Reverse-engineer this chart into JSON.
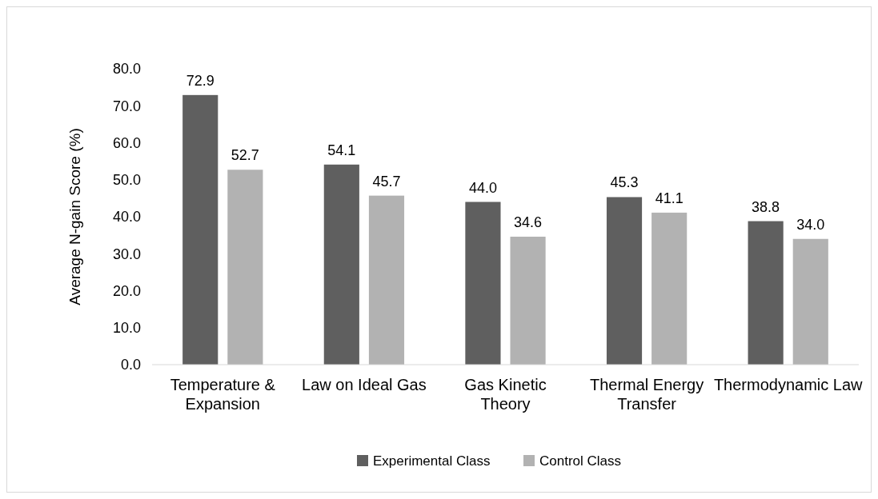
{
  "chart_data": {
    "type": "bar",
    "ylabel": "Average N-gain Score (%)",
    "categories": [
      "Temperature & Expansion",
      "Law on Ideal Gas",
      "Gas Kinetic Theory",
      "Thermal Energy Transfer",
      "Thermodynamic Law"
    ],
    "series": [
      {
        "name": "Experimental Class",
        "color": "#5f5f5f",
        "values": [
          72.9,
          54.1,
          44.0,
          45.3,
          38.8
        ]
      },
      {
        "name": "Control Class",
        "color": "#b2b2b2",
        "values": [
          52.7,
          45.7,
          34.6,
          41.1,
          34.0
        ]
      }
    ],
    "ylim": [
      0,
      80
    ],
    "yticks": [
      {
        "value": 0,
        "label": "0.0"
      },
      {
        "value": 10,
        "label": "10.0"
      },
      {
        "value": 20,
        "label": "20.0"
      },
      {
        "value": 30,
        "label": "30.0"
      },
      {
        "value": 40,
        "label": "40.0"
      },
      {
        "value": 50,
        "label": "50.0"
      },
      {
        "value": 60,
        "label": "60.0"
      },
      {
        "value": 70,
        "label": "70.0"
      },
      {
        "value": 80,
        "label": "80.0"
      }
    ],
    "value_labels": [
      [
        "72.9",
        "54.1",
        "44.0",
        "45.3",
        "38.8"
      ],
      [
        "52.7",
        "45.7",
        "34.6",
        "41.1",
        "34.0"
      ]
    ],
    "legend": "bottom",
    "grid": false
  }
}
